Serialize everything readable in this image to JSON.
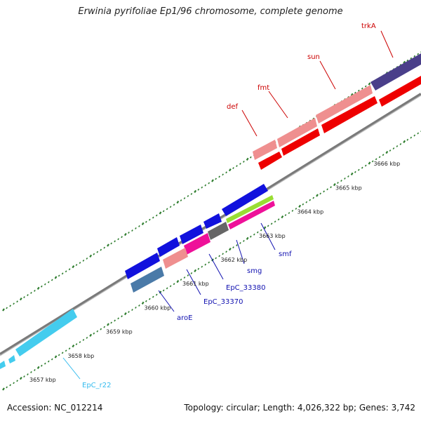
{
  "title": "Erwinia pyrifoliae Ep1/96 chromosome, complete genome",
  "footer": {
    "accession": "Accession: NC_012214",
    "stats": "Topology: circular; Length: 4,026,322 bp; Genes: 3,742"
  },
  "colors": {
    "backbone": "#8c8c8c",
    "dots": "#2e7d2e",
    "label_red": "#cc0000",
    "label_blue": "#1010b0",
    "label_cyan": "#33bbee"
  },
  "ticks": [
    "3657 kbp",
    "3658 kbp",
    "3659 kbp",
    "3660 kbp",
    "3661 kbp",
    "3662 kbp",
    "3663 kbp",
    "3664 kbp",
    "3665 kbp",
    "3666 kbp"
  ],
  "labels": {
    "trkA": "trkA",
    "sun": "sun",
    "fmt": "fmt",
    "def": "def",
    "smf": "smf",
    "smg": "smg",
    "EpC_33380": "EpC_33380",
    "EpC_33370": "EpC_33370",
    "aroE": "aroE",
    "EpC_r22": "EpC_r22"
  }
}
